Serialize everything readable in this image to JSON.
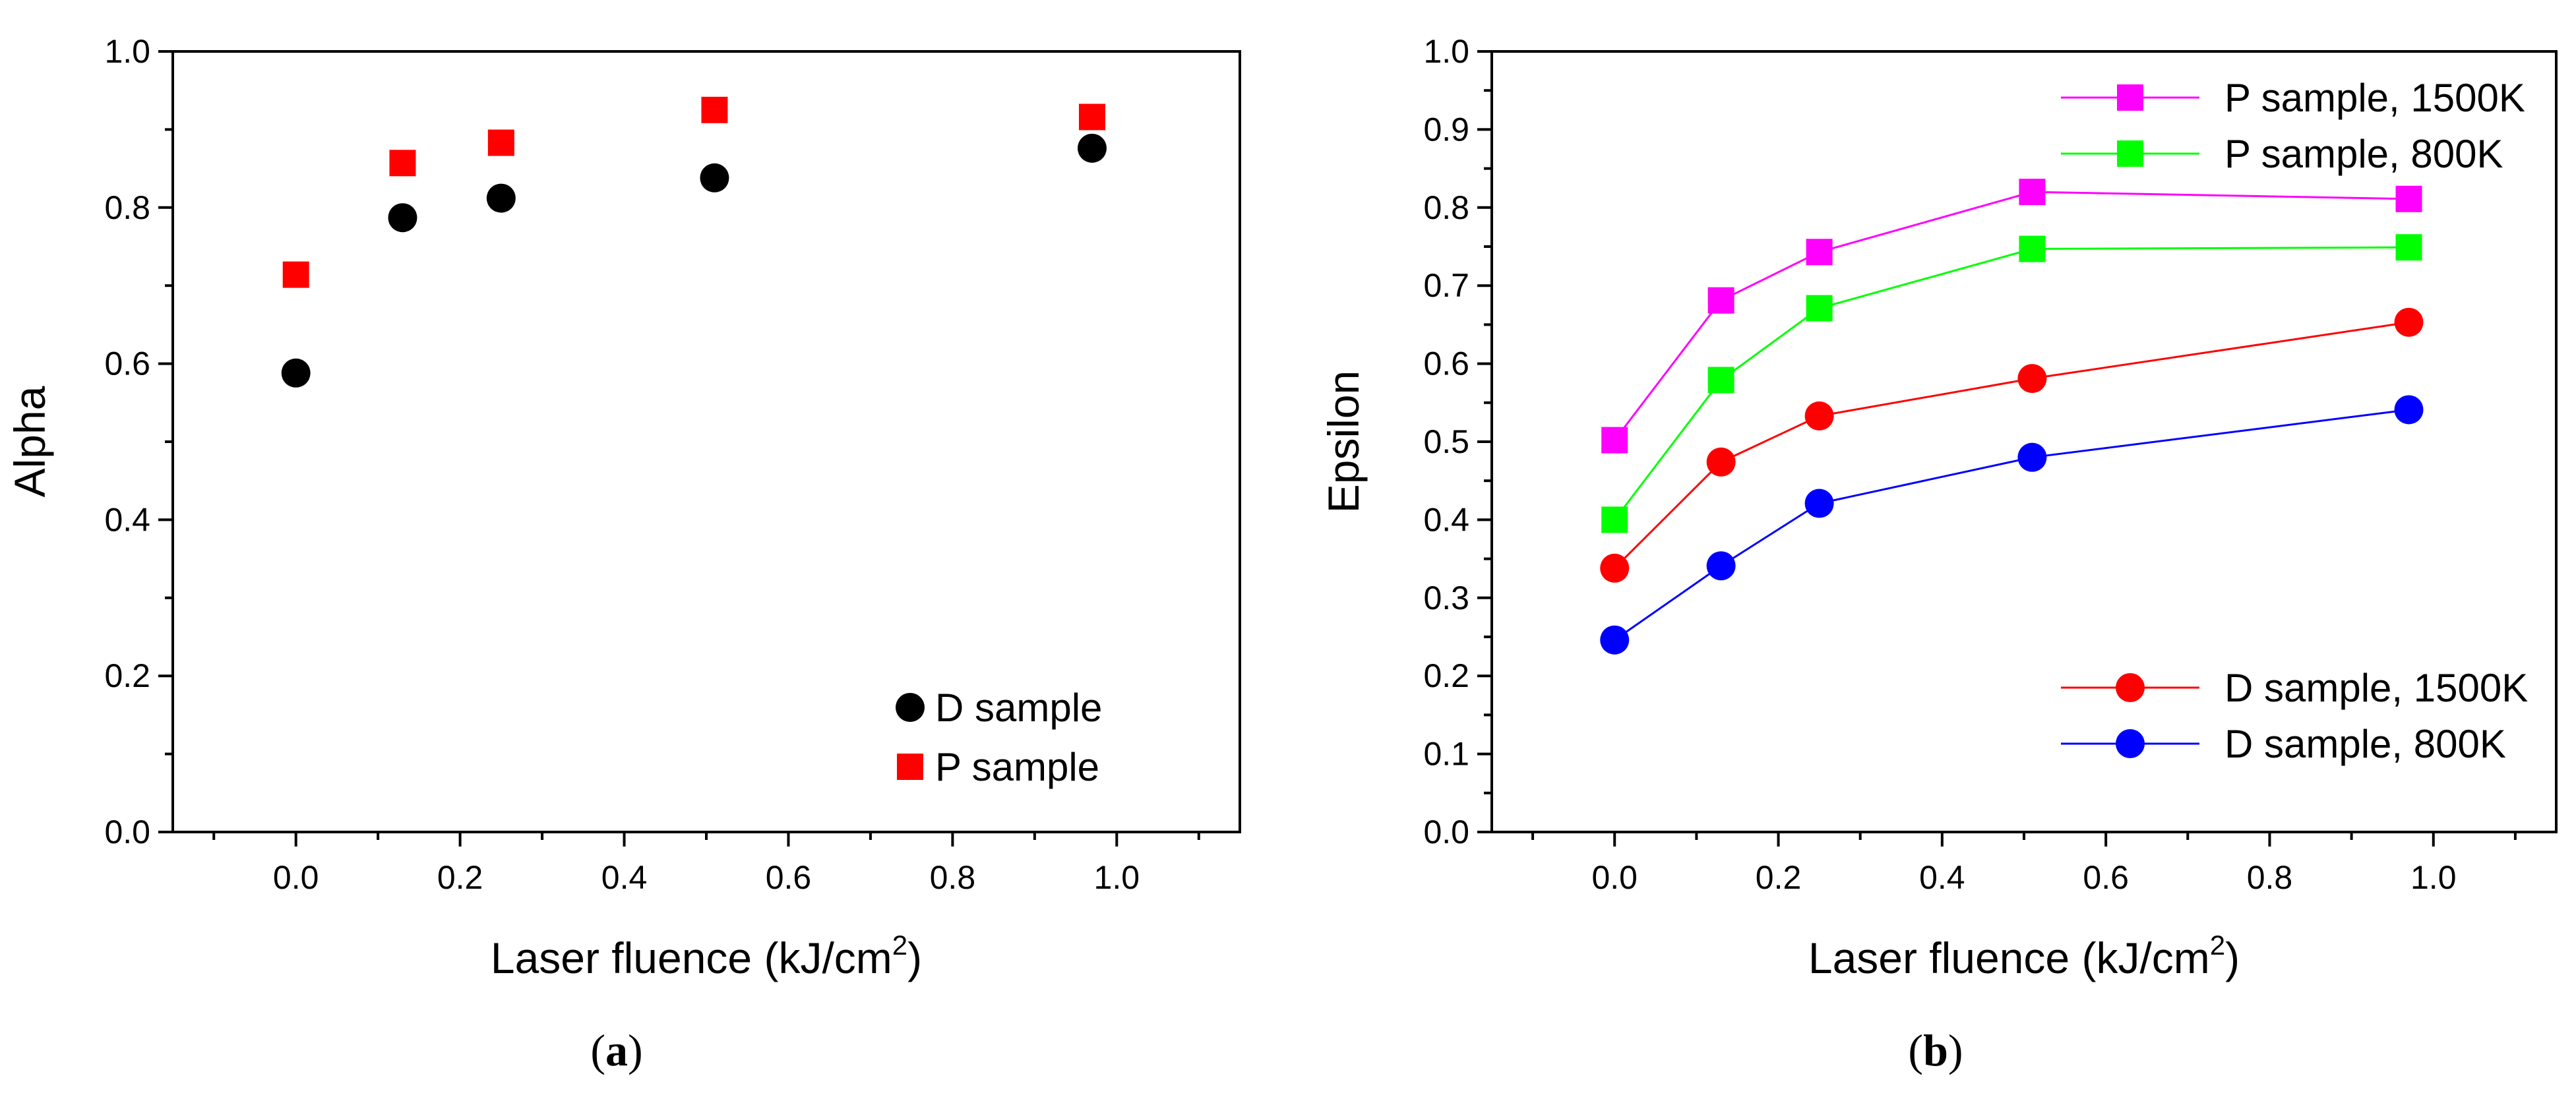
{
  "chart_data": [
    {
      "type": "scatter",
      "panel_label": "a",
      "xlabel": "Laser fluence (kJ/cm",
      "xlabel_sup": "2",
      "xlabel_close": ")",
      "ylabel": "Alpha",
      "xlim": [
        -0.15,
        1.15
      ],
      "ylim": [
        0.0,
        1.0
      ],
      "xticks": [
        0.0,
        0.2,
        0.4,
        0.6,
        0.8,
        1.0
      ],
      "xtick_labels": [
        "0.0",
        "0.2",
        "0.4",
        "0.6",
        "0.8",
        "1.0"
      ],
      "yticks": [
        0.0,
        0.2,
        0.4,
        0.6,
        0.8,
        1.0
      ],
      "ytick_labels": [
        "0.0",
        "0.2",
        "0.4",
        "0.6",
        "0.8",
        "1.0"
      ],
      "legend_position": "bottom-right",
      "series": [
        {
          "name": "D sample",
          "marker": "circle",
          "color": "#000000",
          "lines": false,
          "x": [
            0.0,
            0.13,
            0.25,
            0.51,
            0.97
          ],
          "y": [
            0.588,
            0.787,
            0.812,
            0.838,
            0.876
          ]
        },
        {
          "name": "P sample",
          "marker": "square",
          "color": "#ff0000",
          "lines": false,
          "x": [
            0.0,
            0.13,
            0.25,
            0.51,
            0.97
          ],
          "y": [
            0.714,
            0.857,
            0.883,
            0.925,
            0.916
          ]
        }
      ]
    },
    {
      "type": "line",
      "panel_label": "b",
      "xlabel": "Laser fluence (kJ/cm",
      "xlabel_sup": "2",
      "xlabel_close": ")",
      "ylabel": "Epsilon",
      "xlim": [
        -0.15,
        1.15
      ],
      "ylim": [
        0.0,
        1.0
      ],
      "xticks": [
        0.0,
        0.2,
        0.4,
        0.6,
        0.8,
        1.0
      ],
      "xtick_labels": [
        "0.0",
        "0.2",
        "0.4",
        "0.6",
        "0.8",
        "1.0"
      ],
      "yticks": [
        0.0,
        0.1,
        0.2,
        0.3,
        0.4,
        0.5,
        0.6,
        0.7,
        0.8,
        0.9,
        1.0
      ],
      "ytick_labels": [
        "0.0",
        "0.1",
        "0.2",
        "0.3",
        "0.4",
        "0.5",
        "0.6",
        "0.7",
        "0.8",
        "0.9",
        "1.0"
      ],
      "legend_position": "top-right and bottom-right",
      "series": [
        {
          "name": "P sample, 1500K",
          "marker": "square",
          "color": "#ff00ff",
          "lines": true,
          "legend_group": "top",
          "x": [
            0.0,
            0.13,
            0.25,
            0.51,
            0.97
          ],
          "y": [
            0.502,
            0.681,
            0.743,
            0.82,
            0.811
          ]
        },
        {
          "name": "P sample, 800K",
          "marker": "square",
          "color": "#00ff00",
          "lines": true,
          "legend_group": "top",
          "x": [
            0.0,
            0.13,
            0.25,
            0.51,
            0.97
          ],
          "y": [
            0.4,
            0.579,
            0.671,
            0.747,
            0.749
          ]
        },
        {
          "name": "D sample, 1500K",
          "marker": "circle",
          "color": "#ff0000",
          "lines": true,
          "legend_group": "bottom",
          "x": [
            0.0,
            0.13,
            0.25,
            0.51,
            0.97
          ],
          "y": [
            0.338,
            0.474,
            0.533,
            0.581,
            0.653
          ]
        },
        {
          "name": "D sample, 800K",
          "marker": "circle",
          "color": "#0000ff",
          "lines": true,
          "legend_group": "bottom",
          "x": [
            0.0,
            0.13,
            0.25,
            0.51,
            0.97
          ],
          "y": [
            0.246,
            0.341,
            0.421,
            0.48,
            0.541
          ]
        }
      ]
    }
  ],
  "captions": {
    "a": "(a)",
    "b": "(b)",
    "a_letter": "a",
    "b_letter": "b"
  }
}
